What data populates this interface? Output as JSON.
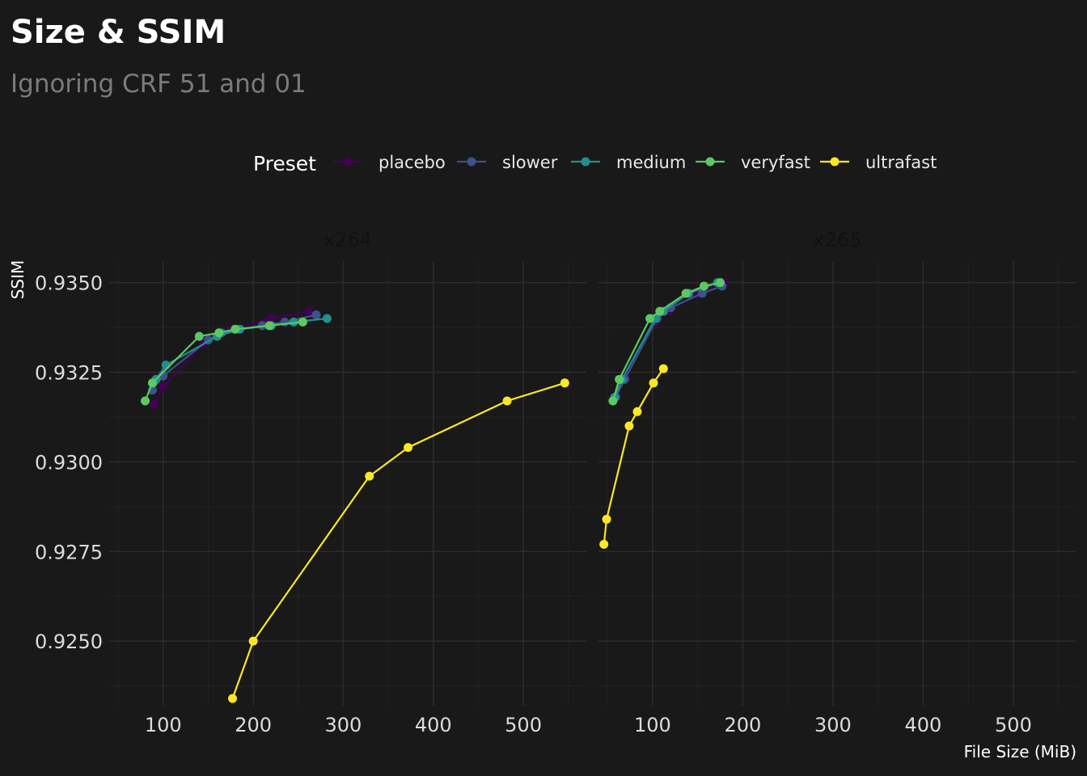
{
  "chart_data": {
    "type": "line",
    "title": "Size & SSIM",
    "subtitle": "Ignoring CRF 51 and 01",
    "xlabel": "File Size (MiB)",
    "ylabel": "SSIM",
    "legend": {
      "title": "Preset",
      "position": "top"
    },
    "grid": true,
    "colors": {
      "placebo": "#440154",
      "slower": "#3b528b",
      "medium": "#21908c",
      "veryfast": "#5dc863",
      "ultrafast": "#fde725"
    },
    "series_order": [
      "placebo",
      "slower",
      "medium",
      "veryfast",
      "ultrafast"
    ],
    "facets": [
      {
        "name": "x264",
        "xlim": [
          40,
          570
        ],
        "ylim": [
          0.9232,
          0.9356
        ],
        "xticks": [
          100,
          200,
          300,
          400,
          500
        ],
        "xtick_labels": [
          "100",
          "200",
          "300",
          "400",
          "500"
        ],
        "yticks": [
          0.925,
          0.9275,
          0.93,
          0.9325,
          0.935
        ],
        "ytick_labels": [
          "0.9250",
          "0.9275",
          "0.9300",
          "0.9325",
          "0.9350"
        ],
        "series": [
          {
            "name": "placebo",
            "x": [
              90,
              100,
              145,
              175,
              220,
              262
            ],
            "y": [
              0.9316,
              0.9321,
              0.9333,
              0.9337,
              0.934,
              0.9342
            ]
          },
          {
            "name": "slower",
            "x": [
              88,
              100,
              150,
              165,
              210,
              235,
              270
            ],
            "y": [
              0.932,
              0.9324,
              0.9334,
              0.9336,
              0.9338,
              0.9339,
              0.9341
            ]
          },
          {
            "name": "medium",
            "x": [
              92,
              103,
              160,
              185,
              220,
              245,
              282
            ],
            "y": [
              0.9323,
              0.9327,
              0.9335,
              0.9337,
              0.9338,
              0.9339,
              0.934
            ]
          },
          {
            "name": "veryfast",
            "x": [
              80,
              88,
              140,
              162,
              180,
              218,
              255
            ],
            "y": [
              0.9317,
              0.9322,
              0.9335,
              0.9336,
              0.9337,
              0.9338,
              0.9339
            ]
          },
          {
            "name": "ultrafast",
            "x": [
              177,
              200,
              329,
              372,
              482,
              546
            ],
            "y": [
              0.9234,
              0.925,
              0.9296,
              0.9304,
              0.9317,
              0.9322
            ]
          }
        ]
      },
      {
        "name": "x265",
        "xlim": [
          40,
          570
        ],
        "ylim": [
          0.9232,
          0.9356
        ],
        "xticks": [
          100,
          200,
          300,
          400,
          500
        ],
        "xtick_labels": [
          "100",
          "200",
          "300",
          "400",
          "500"
        ],
        "yticks": [
          0.925,
          0.9275,
          0.93,
          0.9325,
          0.935
        ],
        "ytick_labels": [
          "0.9250",
          "0.9275",
          "0.9300",
          "0.9325",
          "0.9350"
        ],
        "series": [
          {
            "name": "placebo",
            "x": [
              57,
              70,
              103,
              118,
              150,
              180
            ],
            "y": [
              0.9318,
              0.9324,
              0.9339,
              0.9342,
              0.9347,
              0.935
            ]
          },
          {
            "name": "slower",
            "x": [
              59,
              69,
              105,
              120,
              155,
              177
            ],
            "y": [
              0.9318,
              0.9323,
              0.934,
              0.9343,
              0.9347,
              0.9349
            ]
          },
          {
            "name": "medium",
            "x": [
              58,
              66,
              103,
              112,
              140,
              172
            ],
            "y": [
              0.9318,
              0.9323,
              0.934,
              0.9342,
              0.9347,
              0.935
            ]
          },
          {
            "name": "veryfast",
            "x": [
              56,
              63,
              97,
              108,
              137,
              157,
              175
            ],
            "y": [
              0.9317,
              0.9323,
              0.934,
              0.9342,
              0.9347,
              0.9349,
              0.935
            ]
          },
          {
            "name": "ultrafast",
            "x": [
              46,
              49,
              74,
              83,
              101,
              112
            ],
            "y": [
              0.9277,
              0.9284,
              0.931,
              0.9314,
              0.9322,
              0.9326
            ]
          }
        ]
      }
    ]
  }
}
